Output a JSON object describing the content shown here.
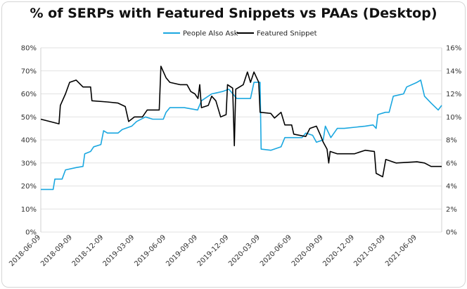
{
  "chart_data": {
    "type": "line",
    "title": "% of SERPs with Featured Snippets vs PAAs (Desktop)",
    "legend_position": "top",
    "grid": true,
    "x_ticks": [
      "2018-06-09",
      "2018-09-09",
      "2018-12-09",
      "2019-03-09",
      "2019-06-09",
      "2019-09-09",
      "2019-12-09",
      "2020-03-09",
      "2020-06-09",
      "2020-09-09",
      "2020-12-09",
      "2021-03-09",
      "2021-06-09"
    ],
    "xlim": [
      "2018-06-09",
      "2021-08-20"
    ],
    "y_left": {
      "ylim": [
        0,
        80
      ],
      "ticks": [
        "0%",
        "10%",
        "20%",
        "30%",
        "40%",
        "50%",
        "60%",
        "70%",
        "80%"
      ]
    },
    "y_right": {
      "ylim": [
        0,
        16
      ],
      "ticks": [
        "0%",
        "2%",
        "4%",
        "6%",
        "8%",
        "10%",
        "12%",
        "14%",
        "16%"
      ]
    },
    "series": [
      {
        "name": "People Also Ask",
        "color": "#1aa7e0",
        "axis": "left",
        "points": [
          [
            "2018-06-09",
            18.5
          ],
          [
            "2018-07-15",
            18.5
          ],
          [
            "2018-07-20",
            23
          ],
          [
            "2018-08-10",
            23
          ],
          [
            "2018-08-20",
            27
          ],
          [
            "2018-09-20",
            28
          ],
          [
            "2018-10-10",
            28.5
          ],
          [
            "2018-10-15",
            34
          ],
          [
            "2018-11-01",
            35
          ],
          [
            "2018-11-10",
            37
          ],
          [
            "2018-12-01",
            38
          ],
          [
            "2018-12-09",
            44
          ],
          [
            "2018-12-20",
            43
          ],
          [
            "2019-01-20",
            43
          ],
          [
            "2019-02-01",
            44.5
          ],
          [
            "2019-03-01",
            46
          ],
          [
            "2019-03-15",
            48
          ],
          [
            "2019-04-10",
            50
          ],
          [
            "2019-05-01",
            49
          ],
          [
            "2019-06-01",
            49
          ],
          [
            "2019-06-09",
            52
          ],
          [
            "2019-06-20",
            54
          ],
          [
            "2019-08-01",
            54
          ],
          [
            "2019-09-09",
            53
          ],
          [
            "2019-09-20",
            57
          ],
          [
            "2019-10-20",
            60
          ],
          [
            "2019-11-20",
            61
          ],
          [
            "2019-12-09",
            62
          ],
          [
            "2020-01-01",
            58
          ],
          [
            "2020-02-10",
            58
          ],
          [
            "2020-02-20",
            65
          ],
          [
            "2020-03-09",
            65
          ],
          [
            "2020-03-12",
            36
          ],
          [
            "2020-04-09",
            35.5
          ],
          [
            "2020-05-09",
            37
          ],
          [
            "2020-05-20",
            41
          ],
          [
            "2020-07-09",
            41
          ],
          [
            "2020-07-20",
            43
          ],
          [
            "2020-08-09",
            42
          ],
          [
            "2020-08-20",
            39
          ],
          [
            "2020-09-09",
            40
          ],
          [
            "2020-09-15",
            46
          ],
          [
            "2020-10-01",
            41
          ],
          [
            "2020-10-20",
            45
          ],
          [
            "2020-11-09",
            45
          ],
          [
            "2021-01-09",
            46
          ],
          [
            "2021-02-01",
            46.5
          ],
          [
            "2021-02-10",
            45
          ],
          [
            "2021-02-15",
            51
          ],
          [
            "2021-03-09",
            52
          ],
          [
            "2021-03-20",
            52
          ],
          [
            "2021-04-01",
            59
          ],
          [
            "2021-05-01",
            60
          ],
          [
            "2021-05-10",
            63
          ],
          [
            "2021-06-09",
            65
          ],
          [
            "2021-06-20",
            66
          ],
          [
            "2021-07-01",
            59
          ],
          [
            "2021-07-20",
            56
          ],
          [
            "2021-08-10",
            53
          ],
          [
            "2021-08-20",
            55
          ]
        ]
      },
      {
        "name": "Featured Snippet",
        "color": "#000000",
        "axis": "right",
        "points": [
          [
            "2018-06-09",
            9.8
          ],
          [
            "2018-08-01",
            9.4
          ],
          [
            "2018-08-05",
            11
          ],
          [
            "2018-08-20",
            12
          ],
          [
            "2018-09-01",
            13
          ],
          [
            "2018-09-20",
            13.2
          ],
          [
            "2018-10-10",
            12.6
          ],
          [
            "2018-11-01",
            12.6
          ],
          [
            "2018-11-05",
            11.4
          ],
          [
            "2018-12-20",
            11.3
          ],
          [
            "2019-01-20",
            11.2
          ],
          [
            "2019-02-10",
            10.9
          ],
          [
            "2019-02-20",
            9.6
          ],
          [
            "2019-03-09",
            10
          ],
          [
            "2019-04-01",
            10
          ],
          [
            "2019-04-15",
            10.6
          ],
          [
            "2019-05-20",
            10.6
          ],
          [
            "2019-05-25",
            14.4
          ],
          [
            "2019-06-09",
            13.4
          ],
          [
            "2019-06-20",
            13
          ],
          [
            "2019-07-20",
            12.8
          ],
          [
            "2019-08-09",
            12.8
          ],
          [
            "2019-08-20",
            12.2
          ],
          [
            "2019-09-01",
            12
          ],
          [
            "2019-09-10",
            11.6
          ],
          [
            "2019-09-15",
            12.8
          ],
          [
            "2019-09-20",
            10.8
          ],
          [
            "2019-10-10",
            11
          ],
          [
            "2019-10-20",
            11.8
          ],
          [
            "2019-11-01",
            11.4
          ],
          [
            "2019-11-15",
            10
          ],
          [
            "2019-12-01",
            10.2
          ],
          [
            "2019-12-05",
            12.8
          ],
          [
            "2019-12-20",
            12.5
          ],
          [
            "2019-12-25",
            7.5
          ],
          [
            "2019-12-29",
            12.4
          ],
          [
            "2020-01-20",
            12.8
          ],
          [
            "2020-02-01",
            13.9
          ],
          [
            "2020-02-10",
            13
          ],
          [
            "2020-02-20",
            13.9
          ],
          [
            "2020-03-05",
            13
          ],
          [
            "2020-03-09",
            10.4
          ],
          [
            "2020-04-09",
            10.3
          ],
          [
            "2020-04-20",
            9.9
          ],
          [
            "2020-05-09",
            10.4
          ],
          [
            "2020-05-20",
            9.3
          ],
          [
            "2020-06-09",
            9.3
          ],
          [
            "2020-06-15",
            8.5
          ],
          [
            "2020-07-20",
            8.3
          ],
          [
            "2020-08-01",
            9
          ],
          [
            "2020-08-20",
            9.2
          ],
          [
            "2020-09-01",
            8.4
          ],
          [
            "2020-09-09",
            7.8
          ],
          [
            "2020-09-20",
            7.2
          ],
          [
            "2020-09-25",
            6
          ],
          [
            "2020-09-29",
            7
          ],
          [
            "2020-10-20",
            6.8
          ],
          [
            "2020-12-09",
            6.8
          ],
          [
            "2021-01-09",
            7.1
          ],
          [
            "2021-02-05",
            7
          ],
          [
            "2021-02-10",
            5.1
          ],
          [
            "2021-03-01",
            4.8
          ],
          [
            "2021-03-10",
            6.3
          ],
          [
            "2021-04-09",
            6
          ],
          [
            "2021-06-09",
            6.1
          ],
          [
            "2021-07-01",
            6
          ],
          [
            "2021-07-20",
            5.7
          ],
          [
            "2021-08-20",
            5.7
          ]
        ]
      }
    ]
  }
}
